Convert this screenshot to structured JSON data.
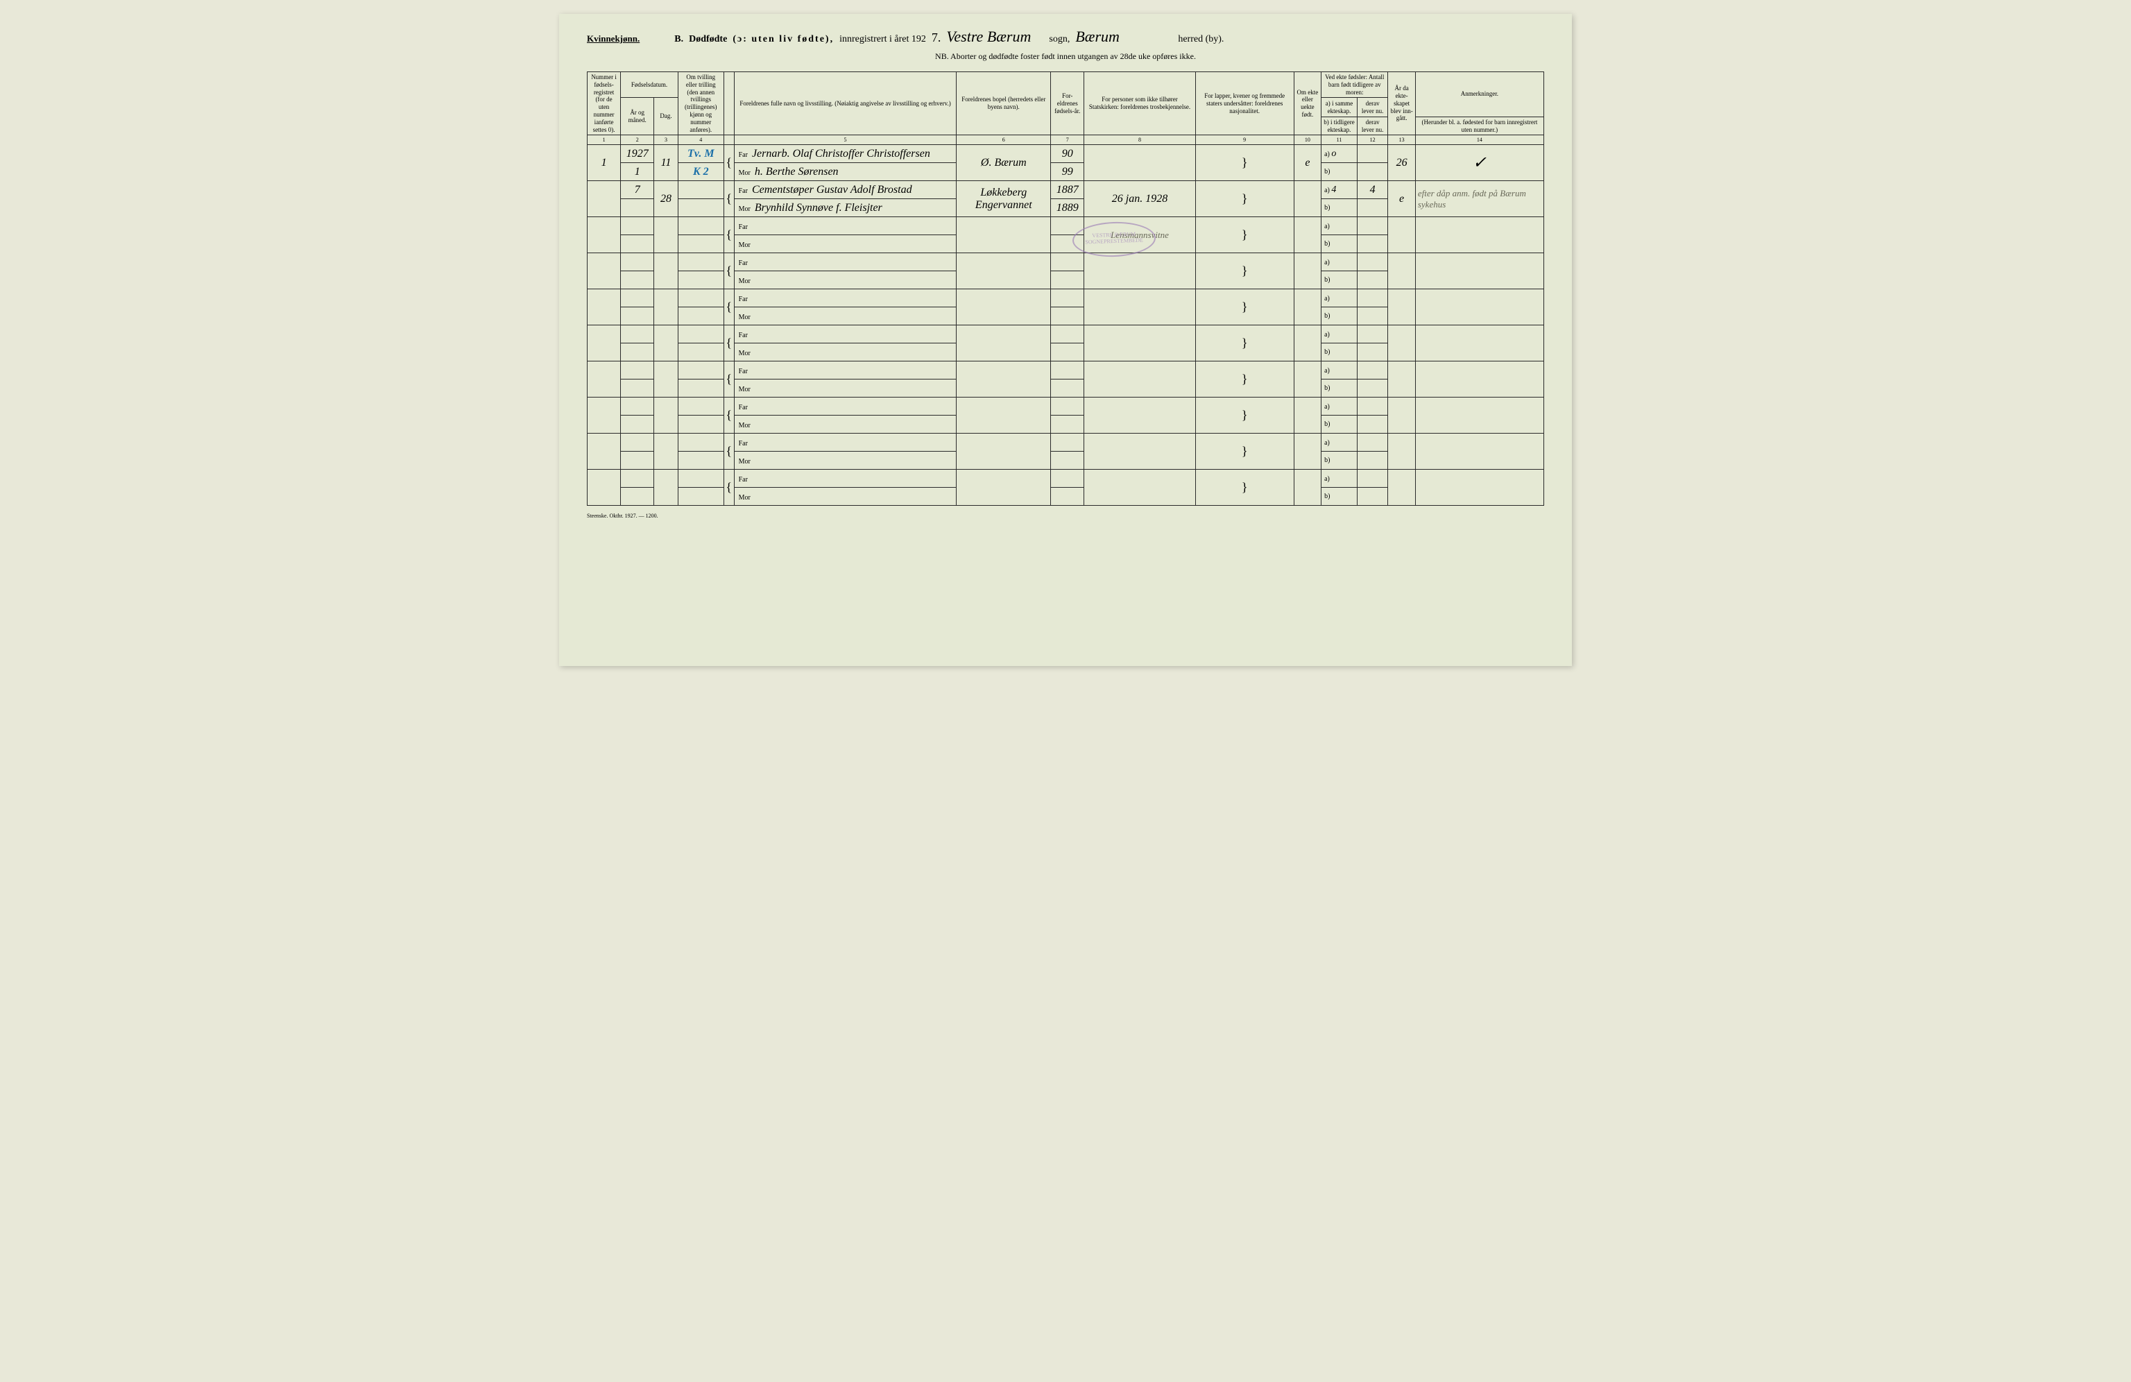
{
  "header": {
    "gender": "Kvinnekjønn.",
    "section": "B.",
    "title_main": "Dødfødte",
    "title_paren": "(ɔ: uten liv fødte),",
    "title_reg": "innregistrert i året 192",
    "year_hand": "7.",
    "sogn_hand": "Vestre Bærum",
    "sogn_label": "sogn,",
    "herred_hand": "Bærum",
    "herred_label": "herred (by).",
    "nb": "NB. Aborter og dødfødte foster født innen utgangen av 28de uke opføres ikke."
  },
  "columns": {
    "c1": "Nummer i fødsels-registret (for de uten nummer ianførte settes 0).",
    "c2_top": "Fødselsdatum.",
    "c2a": "År og måned.",
    "c2b": "Dag.",
    "c3": "Om tvilling eller trilling (den annen tvillings (trillingenes) kjønn og nummer anføres).",
    "c5": "Foreldrenes fulle navn og livsstilling. (Nøiaktig angivelse av livsstilling og erhverv.)",
    "c6": "Foreldrenes bopel (herredets eller byens navn).",
    "c7": "For-eldrenes fødsels-år.",
    "c8": "For personer som ikke tilhører Statskirken: foreldrenes trosbekjennelse.",
    "c9": "For lapper, kvener og fremmede staters undersåtter: foreldrenes nasjonalitet.",
    "c10": "Om ekte eller uekte født.",
    "c11_top": "Ved ekte fødsler: Antall barn født tidligere av moren:",
    "c11a": "a) i samme ekteskap.",
    "c11b": "b) i tidligere ekteskap.",
    "c12a": "derav lever nu.",
    "c12b": "derav lever nu.",
    "c13": "År da ekte-skapet blev inn-gått.",
    "c14": "Anmerkninger.",
    "c14_sub": "(Herunder bl. a. fødested for barn innregistrert uten nummer.)"
  },
  "colnums": [
    "1",
    "2",
    "3",
    "3",
    "4",
    "5",
    "6",
    "7",
    "8",
    "9",
    "10",
    "11",
    "12",
    "13",
    "14"
  ],
  "labels": {
    "far": "Far",
    "mor": "Mor",
    "a": "a)",
    "b": "b)"
  },
  "rows": [
    {
      "num": "1",
      "aar": "1927",
      "aar2": "1",
      "dag": "11",
      "tvill_far": "Tv. M",
      "tvill_mor": "K 2",
      "far": "Jernarb. Olaf Christoffer Christoffersen",
      "mor": "h. Berthe Sørensen",
      "bopel": "Ø. Bærum",
      "far_aar": "90",
      "mor_aar": "99",
      "tros": "",
      "nasj": "",
      "ekte": "e",
      "a_val": "o",
      "b_val": "",
      "aar_ekt": "26",
      "anm": "✓"
    },
    {
      "num": "",
      "aar": "7",
      "aar2": "",
      "dag": "28",
      "tvill_far": "",
      "tvill_mor": "",
      "far": "Cementstøper Gustav Adolf Brostad",
      "mor": "Brynhild Synnøve f. Fleisjter",
      "bopel": "Løkkeberg Engervannet",
      "far_aar": "1887",
      "mor_aar": "1889",
      "tros": "26 jan. 1928",
      "nasj": "",
      "ekte": "",
      "a_val": "4",
      "b_val": "4",
      "aar_ekt": "e",
      "anm": "efter dåp anm. født på Bærum sykehus"
    }
  ],
  "stamp": {
    "line1": "VESTRE BÆRUM",
    "line2": "SOGNEPRESTEMBEDE"
  },
  "stamp_extra": "Lensmannsvitne",
  "footer": "Steenske. Okthr. 1927. — 1200.",
  "colors": {
    "paper": "#e5e9d4",
    "ink": "#2a2a2a",
    "blue": "#1a6fa8",
    "stamp": "#9a7ab5",
    "pencil": "#6a6a5a"
  }
}
